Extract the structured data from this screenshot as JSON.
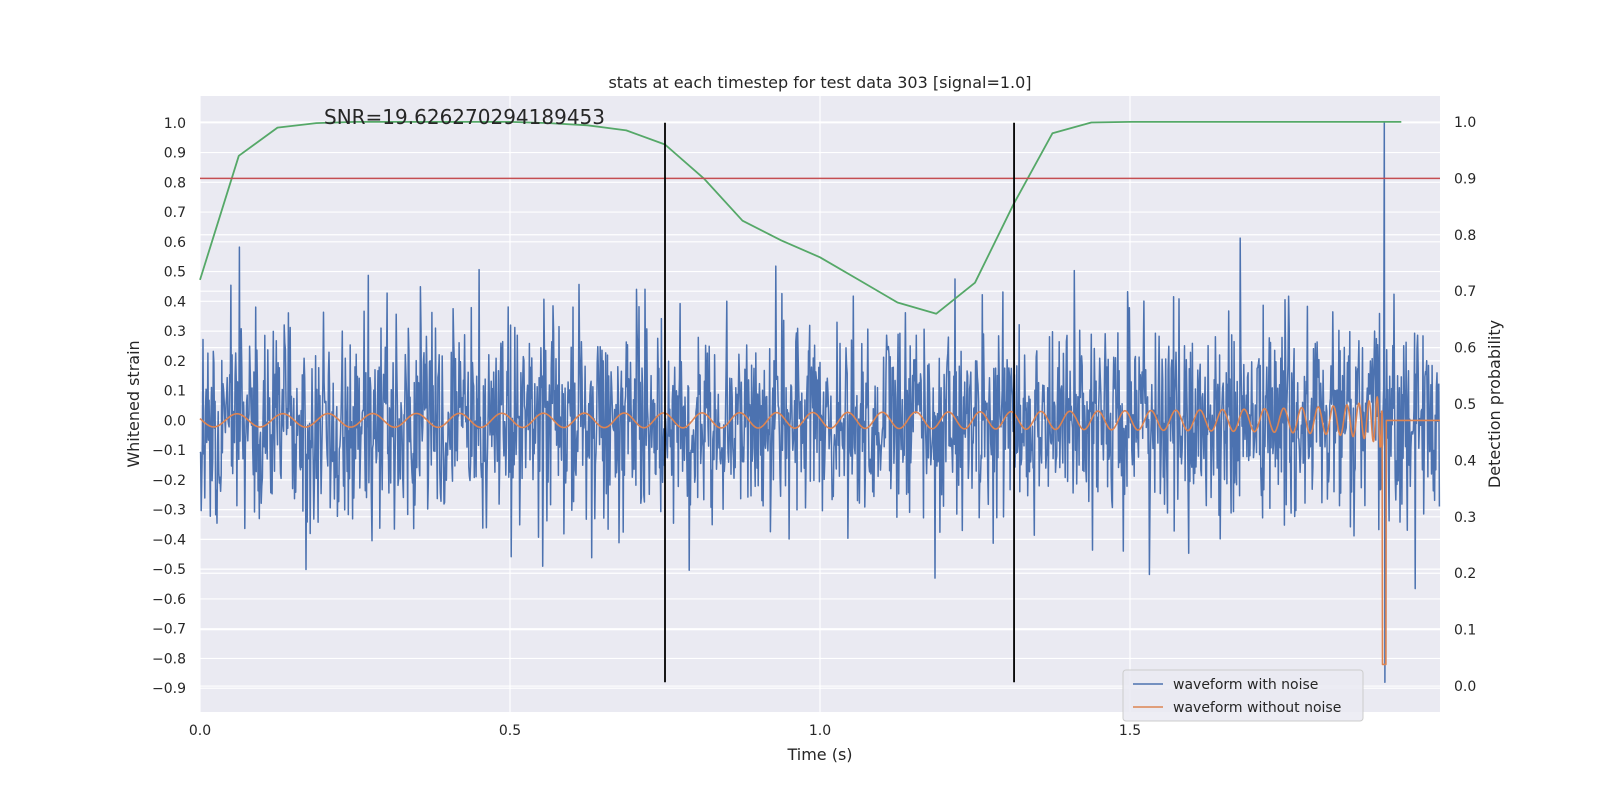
{
  "colors": {
    "plot_background": "#eaeaf2",
    "grid": "#ffffff",
    "noisy": "#4c72b0",
    "clean": "#dd8452",
    "probability": "#55a868",
    "threshold": "#c44e52",
    "marker": "#000000"
  },
  "chart_data": {
    "type": "line",
    "title": "stats at each timestep for test data 303 [signal=1.0]",
    "xlabel": "Time (s)",
    "ylabel": "Whitened strain",
    "ylabel_right": "Detection probability",
    "xlim": [
      0.0,
      2.0
    ],
    "ylim": [
      -0.98,
      1.09
    ],
    "ylim_right": [
      -0.046,
      1.046
    ],
    "grid": true,
    "legend_position": "lower right",
    "x_ticks": [
      "0.0",
      "0.5",
      "1.0",
      "1.5"
    ],
    "y_ticks": [
      "−0.9",
      "−0.8",
      "−0.7",
      "−0.6",
      "−0.5",
      "−0.4",
      "−0.3",
      "−0.2",
      "−0.1",
      "0.0",
      "0.1",
      "0.2",
      "0.3",
      "0.4",
      "0.5",
      "0.6",
      "0.7",
      "0.8",
      "0.9",
      "1.0"
    ],
    "y_ticks_right": [
      "0.0",
      "0.1",
      "0.2",
      "0.3",
      "0.4",
      "0.5",
      "0.6",
      "0.7",
      "0.8",
      "0.9",
      "1.0"
    ],
    "annotation": "SNR=19.626270294189453",
    "annotation_x": 0.2,
    "annotation_y": 1.0,
    "threshold_probability": 0.9,
    "marker_times": [
      0.75,
      1.313
    ],
    "marker_strain_range": [
      -0.88,
      1.0
    ],
    "series": [
      {
        "name": "waveform with noise",
        "axis": "left",
        "x_range": [
          0.0,
          2.0
        ],
        "n_samples": 2048,
        "std": 0.17,
        "min": -0.88,
        "max": 1.0,
        "peak_time": 1.91
      },
      {
        "name": "waveform without noise",
        "axis": "left",
        "form": "inspiral chirp",
        "x_range": [
          0.0,
          1.91
        ],
        "initial_amplitude": 0.022,
        "peak_amplitude": 0.74,
        "peak_min": -0.82,
        "peak_time": 1.91,
        "cycles_0_to_1s": 15,
        "tail_value": 0.0
      },
      {
        "name": "detection probability",
        "axis": "right",
        "x": [
          0.0,
          0.0625,
          0.125,
          0.1875,
          0.25,
          0.3125,
          0.375,
          0.4375,
          0.5,
          0.5625,
          0.625,
          0.6875,
          0.75,
          0.8125,
          0.875,
          0.9375,
          1.0,
          1.0625,
          1.125,
          1.1875,
          1.25,
          1.3125,
          1.375,
          1.4375,
          1.5,
          1.5625,
          1.625,
          1.6875,
          1.75,
          1.8125,
          1.875,
          1.9375
        ],
        "y": [
          0.72,
          0.94,
          0.99,
          0.998,
          1.0,
          1.0,
          1.0,
          1.0,
          1.0,
          0.998,
          0.994,
          0.985,
          0.96,
          0.9,
          0.825,
          0.79,
          0.76,
          0.72,
          0.68,
          0.66,
          0.715,
          0.855,
          0.98,
          0.999,
          1.0,
          1.0,
          1.0,
          1.0,
          1.0,
          1.0,
          1.0,
          1.0
        ]
      }
    ],
    "legend": [
      "waveform with noise",
      "waveform without noise"
    ]
  }
}
